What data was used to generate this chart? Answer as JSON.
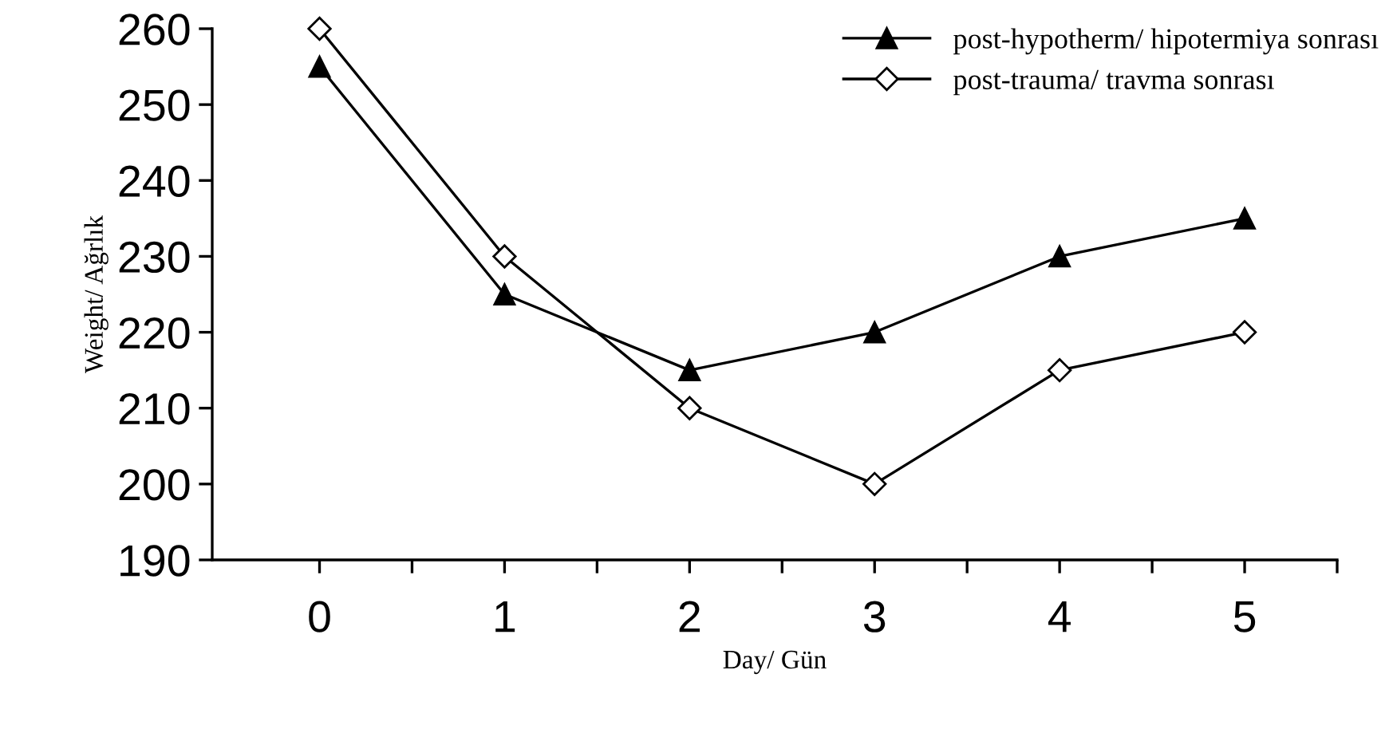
{
  "chart_data": {
    "type": "line",
    "xlabel": "Day/ Gün",
    "ylabel": "Weight/ Ağrlık",
    "x": [
      0,
      1,
      2,
      3,
      4,
      5
    ],
    "xlim": [
      -0.58,
      5.5
    ],
    "xticks": [
      0,
      {
        "value": 0.5,
        "label": null
      },
      1,
      {
        "value": 1.5,
        "label": null
      },
      2,
      {
        "value": 2.5,
        "label": null
      },
      3,
      {
        "value": 3.5,
        "label": null
      },
      4,
      {
        "value": 4.5,
        "label": null
      },
      5,
      {
        "value": 5.5,
        "label": null
      }
    ],
    "ylim": [
      190,
      260
    ],
    "yticks": [
      190,
      200,
      210,
      220,
      230,
      240,
      250,
      260
    ],
    "grid": false,
    "legend": "top right",
    "series": [
      {
        "name": "post-hypotherm/ hipotermiya sonrası",
        "color": "#000000",
        "marker": "triangle",
        "values": [
          255,
          225,
          215,
          220,
          230,
          235
        ]
      },
      {
        "name": "post-trauma/ travma sonrası",
        "color": "#000000",
        "marker": "diamond",
        "values": [
          260,
          230,
          210,
          200,
          215,
          220
        ]
      }
    ]
  }
}
